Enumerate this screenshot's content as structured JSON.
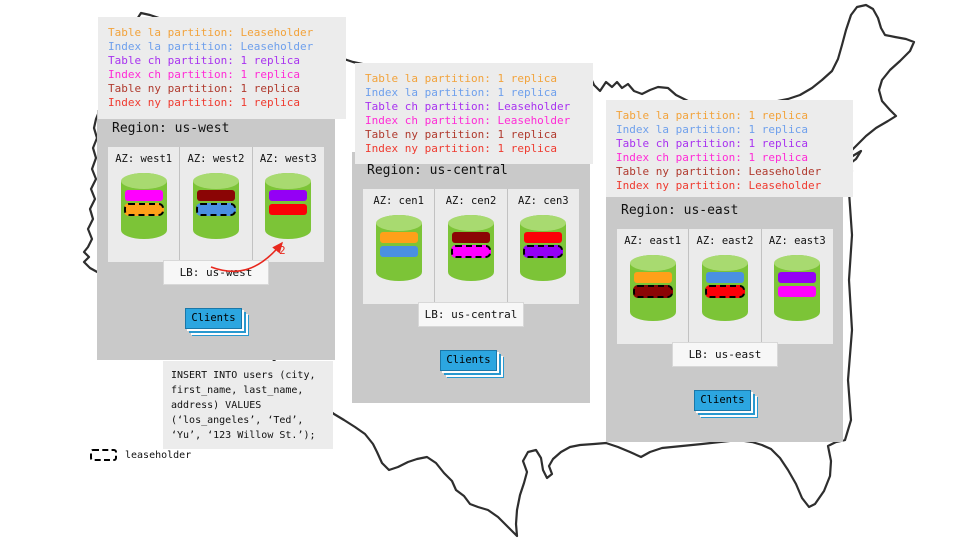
{
  "annotation_colors": [
    "#f2a33c",
    "#6fa0ec",
    "#a832f0",
    "#ff2bd6",
    "#b03a2e",
    "#ef3b30"
  ],
  "colors": {
    "cylinder_body": "#7cc437",
    "cylinder_top": "#a8da70",
    "clients_blue": "#2ca6e0",
    "arrow_red": "#e8281e",
    "panel_gray": "#c9c9c9",
    "box_gray": "#ececec"
  },
  "regions": [
    {
      "id": "us-west",
      "title": "Region: us-west",
      "annotation_lines": [
        "Table la partition: Leaseholder",
        "Index la partition: Leaseholder",
        "Table ch partition: 1 replica",
        "Index ch partition: 1 replica",
        "Table ny partition: 1 replica",
        "Index ny partition: 1 replica"
      ],
      "azs": [
        {
          "label": "AZ: west1",
          "stripes": [
            {
              "color": "#ff00ff",
              "leaseholder": false
            },
            {
              "color": "#ffa019",
              "leaseholder": true
            }
          ]
        },
        {
          "label": "AZ: west2",
          "stripes": [
            {
              "color": "#8b0505",
              "leaseholder": false
            },
            {
              "color": "#4a90e2",
              "leaseholder": true
            }
          ]
        },
        {
          "label": "AZ: west3",
          "stripes": [
            {
              "color": "#9400f5",
              "leaseholder": false
            },
            {
              "color": "#fb0007",
              "leaseholder": false
            }
          ]
        }
      ],
      "lb_label": "LB: us-west",
      "clients_label": "Clients"
    },
    {
      "id": "us-central",
      "title": "Region: us-central",
      "annotation_lines": [
        "Table la partition: 1 replica",
        "Index la partition: 1 replica",
        "Table ch partition: Leaseholder",
        "Index ch partition: Leaseholder",
        "Table ny partition: 1 replica",
        "Index ny partition: 1 replica"
      ],
      "azs": [
        {
          "label": "AZ: cen1",
          "stripes": [
            {
              "color": "#ffa019",
              "leaseholder": false
            },
            {
              "color": "#4a90e2",
              "leaseholder": false
            }
          ]
        },
        {
          "label": "AZ: cen2",
          "stripes": [
            {
              "color": "#8b0505",
              "leaseholder": false
            },
            {
              "color": "#ff00ff",
              "leaseholder": true
            }
          ]
        },
        {
          "label": "AZ: cen3",
          "stripes": [
            {
              "color": "#fb0007",
              "leaseholder": false
            },
            {
              "color": "#9400f5",
              "leaseholder": true
            }
          ]
        }
      ],
      "lb_label": "LB: us-central",
      "clients_label": "Clients"
    },
    {
      "id": "us-east",
      "title": "Region: us-east",
      "annotation_lines": [
        "Table la partition: 1 replica",
        "Index la partition: 1 replica",
        "Table ch partition: 1 replica",
        "Index ch partition: 1 replica",
        "Table ny partition: Leaseholder",
        "Index ny partition: Leaseholder"
      ],
      "azs": [
        {
          "label": "AZ: east1",
          "stripes": [
            {
              "color": "#ffa019",
              "leaseholder": false
            },
            {
              "color": "#8b0505",
              "leaseholder": true
            }
          ]
        },
        {
          "label": "AZ: east2",
          "stripes": [
            {
              "color": "#4a90e2",
              "leaseholder": false
            },
            {
              "color": "#fb0007",
              "leaseholder": true
            }
          ]
        },
        {
          "label": "AZ: east3",
          "stripes": [
            {
              "color": "#9400f5",
              "leaseholder": false
            },
            {
              "color": "#ff00ff",
              "leaseholder": false
            }
          ]
        }
      ],
      "lb_label": "LB: us-east",
      "clients_label": "Clients"
    }
  ],
  "sql": {
    "lines": [
      "INSERT INTO users (city,",
      "first_name, last_name,",
      "address) VALUES",
      "(‘los_angeles’, ‘Ted’,",
      "‘Yu’, ‘123 Willow St.’);"
    ]
  },
  "legend": {
    "label": "leaseholder"
  },
  "arrow": {
    "label": "2"
  }
}
